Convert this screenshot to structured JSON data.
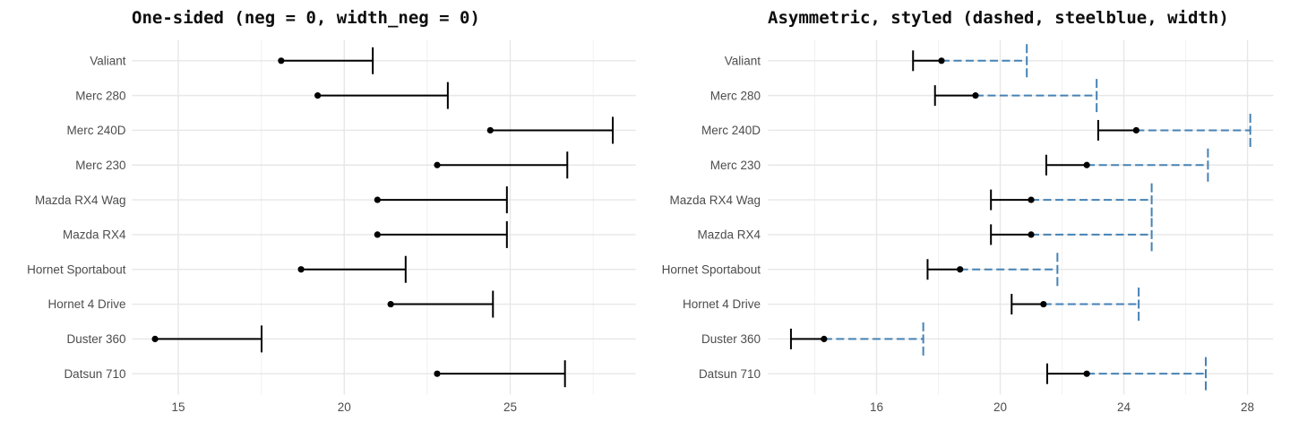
{
  "figure": {
    "background": "#FFFFFF",
    "theme": {
      "grid_major": "#E7E7E7",
      "grid_minor": "#F2F2F2",
      "axis_text_color": "#4D4D4D",
      "title_color": "#0D0D0D",
      "point_color": "#000000"
    }
  },
  "chart_data": [
    {
      "type": "errorbar",
      "orientation": "horizontal",
      "title": "One-sided (neg = 0, width_neg = 0)",
      "grid": true,
      "legend": false,
      "xlim": [
        13.61,
        28.78
      ],
      "xticks": [
        15,
        20,
        25
      ],
      "xticks_minor": [
        17.5,
        22.5,
        27.5
      ],
      "categories": [
        "Valiant",
        "Merc 280",
        "Merc 240D",
        "Merc 230",
        "Mazda RX4 Wag",
        "Mazda RX4",
        "Hornet Sportabout",
        "Hornet 4 Drive",
        "Duster 360",
        "Datsun 710"
      ],
      "center": [
        18.1,
        19.2,
        24.4,
        22.8,
        21.0,
        21.0,
        18.7,
        21.4,
        14.3,
        22.8
      ],
      "lower": [
        18.1,
        19.2,
        24.4,
        22.8,
        21.0,
        21.0,
        18.7,
        21.4,
        14.3,
        22.8
      ],
      "upper": [
        20.86,
        23.12,
        28.09,
        26.72,
        24.9,
        24.9,
        21.85,
        24.48,
        17.51,
        26.65
      ],
      "colors": {
        "bar": "#000000",
        "point": "#000000"
      },
      "linetype": "solid",
      "caps": {
        "lower": false,
        "upper": true
      }
    },
    {
      "type": "errorbar",
      "orientation": "horizontal",
      "title": "Asymmetric, styled (dashed, steelblue, width)",
      "grid": true,
      "legend": false,
      "xlim": [
        12.49,
        28.83
      ],
      "xticks": [
        16,
        20,
        24,
        28
      ],
      "xticks_minor": [
        14,
        18,
        22,
        26
      ],
      "categories": [
        "Valiant",
        "Merc 280",
        "Merc 240D",
        "Merc 230",
        "Mazda RX4 Wag",
        "Mazda RX4",
        "Hornet Sportabout",
        "Hornet 4 Drive",
        "Duster 360",
        "Datsun 710"
      ],
      "center": [
        18.1,
        19.2,
        24.4,
        22.8,
        21.0,
        21.0,
        18.7,
        21.4,
        14.3,
        22.8
      ],
      "lower": [
        17.18,
        17.89,
        23.17,
        21.49,
        19.7,
        19.7,
        17.65,
        20.37,
        13.23,
        21.52
      ],
      "upper": [
        20.86,
        23.12,
        28.09,
        26.72,
        24.9,
        24.9,
        21.85,
        24.48,
        17.51,
        26.65
      ],
      "colors": {
        "neg_segment": "#000000",
        "pos_segment": "#4682B4",
        "point": "#000000"
      },
      "linetype_pos": "dashed",
      "linetype_neg": "solid",
      "caps": {
        "lower": true,
        "upper": true
      }
    }
  ]
}
